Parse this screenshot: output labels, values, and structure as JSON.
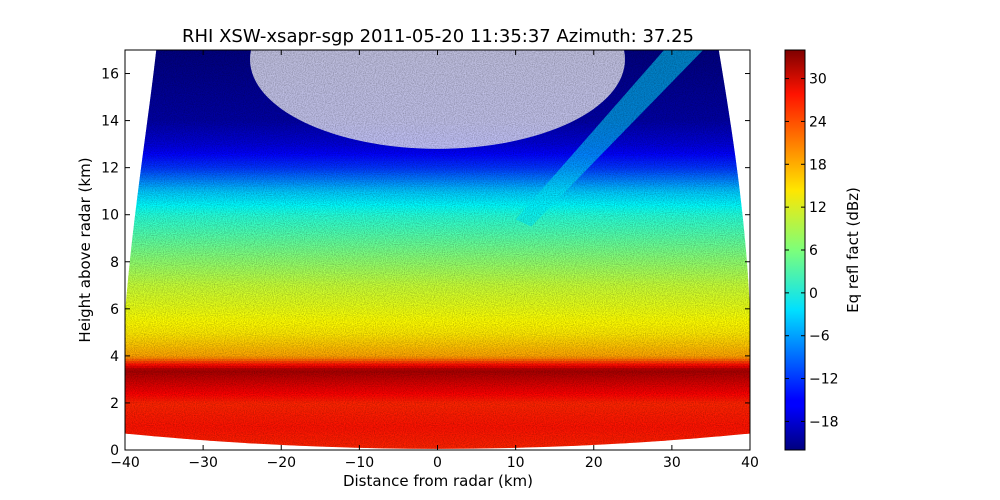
{
  "chart_data": {
    "type": "heatmap",
    "title": "RHI XSW-xsapr-sgp 2011-05-20 11:35:37 Azimuth: 37.25",
    "xlabel": "Distance from radar (km)",
    "ylabel": "Height above radar (km)",
    "colorbar_label": "Eq refl fact (dBz)",
    "xlim": [
      -40,
      40
    ],
    "ylim": [
      0,
      17
    ],
    "clim": [
      -22,
      34
    ],
    "x_ticks": [
      -40,
      -30,
      -20,
      -10,
      0,
      10,
      20,
      30,
      40
    ],
    "x_tick_labels": [
      "−40",
      "−30",
      "−20",
      "−10",
      "0",
      "10",
      "20",
      "30",
      "40"
    ],
    "y_ticks": [
      0,
      2,
      4,
      6,
      8,
      10,
      12,
      14,
      16
    ],
    "y_tick_labels": [
      "0",
      "2",
      "4",
      "6",
      "8",
      "10",
      "12",
      "14",
      "16"
    ],
    "colorbar_ticks": [
      -18,
      -12,
      -6,
      0,
      6,
      12,
      18,
      24,
      30
    ],
    "colorbar_tick_labels": [
      "−18",
      "−12",
      "−6",
      "0",
      "6",
      "12",
      "18",
      "24",
      "30"
    ],
    "colormap": "jet",
    "grid": false,
    "reflectivity_profile": {
      "height_km": [
        0,
        1,
        2,
        3,
        3.4,
        4,
        5,
        6,
        7,
        8,
        9,
        10,
        11,
        12,
        13,
        14,
        17
      ],
      "dbz": [
        25,
        26,
        25,
        30,
        32,
        18,
        14,
        12,
        10,
        7,
        4,
        1,
        -4,
        -12,
        -17,
        -20,
        -22
      ]
    }
  }
}
